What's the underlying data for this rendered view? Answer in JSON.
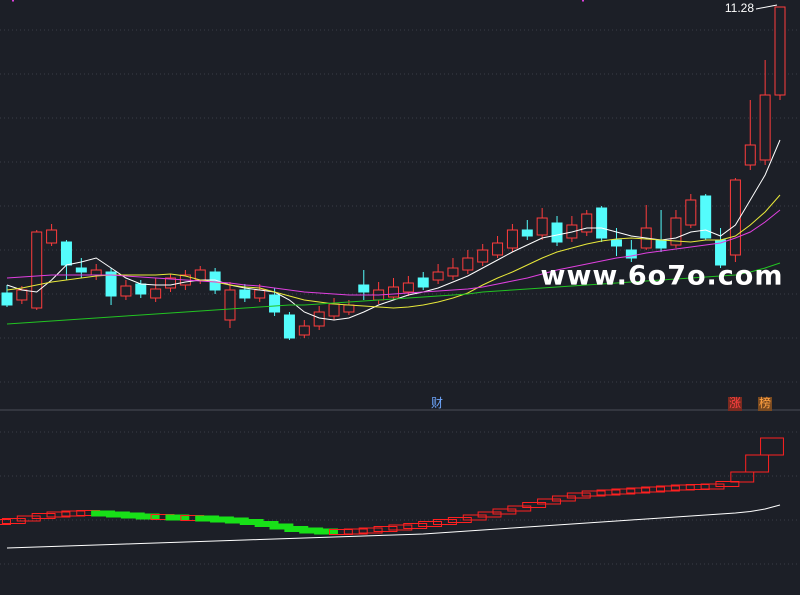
{
  "chart_data": {
    "type": "candlestick",
    "ylim": [
      3.52,
      11.42
    ],
    "up_color": "#ff3c3c",
    "down_color": "#54fcfc",
    "open": [
      5.56,
      5.42,
      5.26,
      6.56,
      6.58,
      6.06,
      5.92,
      5.98,
      5.5,
      5.74,
      5.46,
      5.66,
      5.72,
      5.82,
      5.98,
      5.02,
      5.62,
      5.46,
      5.52,
      5.12,
      4.72,
      4.9,
      5.1,
      5.18,
      5.72,
      5.42,
      5.48,
      5.58,
      5.86,
      5.82,
      5.9,
      6.02,
      6.18,
      6.32,
      6.46,
      6.82,
      6.72,
      6.96,
      6.66,
      6.78,
      7.26,
      6.62,
      6.42,
      6.46,
      6.62,
      6.52,
      6.92,
      7.5,
      6.62,
      6.32,
      8.12,
      8.22,
      9.52
    ],
    "close": [
      5.32,
      5.62,
      6.78,
      6.82,
      6.12,
      5.98,
      6.02,
      5.5,
      5.7,
      5.54,
      5.64,
      5.86,
      5.92,
      6.02,
      5.62,
      5.62,
      5.46,
      5.62,
      5.18,
      4.66,
      4.9,
      5.18,
      5.34,
      5.32,
      5.58,
      5.62,
      5.68,
      5.76,
      5.68,
      5.98,
      6.06,
      6.26,
      6.42,
      6.56,
      6.82,
      6.7,
      7.06,
      6.58,
      6.92,
      7.14,
      6.66,
      6.5,
      6.26,
      6.86,
      6.46,
      7.06,
      7.42,
      6.66,
      6.12,
      7.82,
      8.52,
      9.52,
      11.28
    ],
    "high": [
      5.72,
      5.7,
      6.82,
      6.94,
      6.62,
      6.26,
      6.14,
      6.06,
      5.82,
      5.82,
      5.86,
      5.94,
      6.02,
      6.1,
      6.06,
      5.78,
      5.74,
      5.74,
      5.66,
      5.18,
      5.02,
      5.3,
      5.46,
      5.42,
      6.02,
      5.78,
      5.86,
      5.9,
      5.98,
      6.14,
      6.26,
      6.42,
      6.54,
      6.7,
      6.94,
      7.02,
      7.26,
      7.1,
      7.1,
      7.22,
      7.3,
      6.86,
      6.62,
      7.32,
      7.22,
      7.22,
      7.54,
      7.54,
      6.86,
      7.86,
      9.42,
      10.22,
      11.28
    ],
    "low": [
      5.28,
      5.34,
      5.22,
      6.5,
      5.82,
      5.86,
      5.82,
      5.32,
      5.42,
      5.46,
      5.38,
      5.58,
      5.62,
      5.74,
      5.54,
      4.86,
      5.38,
      5.38,
      5.1,
      4.62,
      4.66,
      4.82,
      5.02,
      5.12,
      5.42,
      5.34,
      5.42,
      5.5,
      5.62,
      5.74,
      5.82,
      5.94,
      6.1,
      6.26,
      6.38,
      6.62,
      6.62,
      6.5,
      6.58,
      6.7,
      6.58,
      6.3,
      6.18,
      6.42,
      6.38,
      6.46,
      6.86,
      6.62,
      6.06,
      6.18,
      8.02,
      8.12,
      9.42
    ],
    "series": [
      {
        "color": "#ffffff",
        "values": [
          5.72,
          5.62,
          5.58,
          5.82,
          6.12,
          6.18,
          6.26,
          6.06,
          5.86,
          5.74,
          5.72,
          5.72,
          5.78,
          5.82,
          5.82,
          5.72,
          5.66,
          5.62,
          5.58,
          5.42,
          5.18,
          5.06,
          5.02,
          5.06,
          5.18,
          5.32,
          5.42,
          5.52,
          5.58,
          5.66,
          5.78,
          5.9,
          6.06,
          6.22,
          6.38,
          6.52,
          6.66,
          6.72,
          6.78,
          6.86,
          6.86,
          6.78,
          6.7,
          6.66,
          6.62,
          6.66,
          6.78,
          6.82,
          6.7,
          6.92,
          7.42,
          7.92,
          8.62
        ]
      },
      {
        "color": "#e8e83a",
        "values": [
          5.62,
          5.66,
          5.72,
          5.78,
          5.82,
          5.86,
          5.9,
          5.92,
          5.92,
          5.92,
          5.92,
          5.94,
          5.9,
          5.82,
          5.78,
          5.72,
          5.68,
          5.66,
          5.58,
          5.5,
          5.42,
          5.38,
          5.34,
          5.32,
          5.3,
          5.28,
          5.26,
          5.28,
          5.32,
          5.38,
          5.46,
          5.56,
          5.72,
          5.86,
          5.98,
          6.12,
          6.26,
          6.38,
          6.46,
          6.54,
          6.6,
          6.64,
          6.66,
          6.64,
          6.62,
          6.6,
          6.58,
          6.62,
          6.62,
          6.7,
          6.92,
          7.18,
          7.52
        ]
      },
      {
        "color": "#e040e0",
        "values": [
          5.86,
          5.88,
          5.9,
          5.92,
          5.92,
          5.92,
          5.92,
          5.92,
          5.9,
          5.88,
          5.86,
          5.84,
          5.82,
          5.8,
          5.78,
          5.76,
          5.72,
          5.7,
          5.66,
          5.62,
          5.58,
          5.56,
          5.54,
          5.52,
          5.52,
          5.52,
          5.54,
          5.56,
          5.58,
          5.6,
          5.62,
          5.64,
          5.68,
          5.74,
          5.8,
          5.86,
          5.94,
          6.02,
          6.08,
          6.14,
          6.2,
          6.26,
          6.3,
          6.36,
          6.4,
          6.44,
          6.48,
          6.52,
          6.56,
          6.66,
          6.78,
          6.98,
          7.22
        ]
      },
      {
        "color": "#22c422",
        "values": [
          4.94,
          4.96,
          4.98,
          5.0,
          5.02,
          5.04,
          5.06,
          5.08,
          5.1,
          5.12,
          5.14,
          5.16,
          5.18,
          5.2,
          5.22,
          5.24,
          5.26,
          5.28,
          5.3,
          5.32,
          5.32,
          5.34,
          5.36,
          5.38,
          5.4,
          5.42,
          5.44,
          5.46,
          5.48,
          5.5,
          5.52,
          5.54,
          5.58,
          5.6,
          5.62,
          5.64,
          5.66,
          5.68,
          5.7,
          5.72,
          5.74,
          5.76,
          5.78,
          5.8,
          5.82,
          5.84,
          5.86,
          5.88,
          5.9,
          5.92,
          5.98,
          6.06,
          6.16
        ]
      }
    ],
    "lower": {
      "type": "step",
      "ylim": [
        0,
        37
      ],
      "up_color": "#ff2020",
      "down_color": "#18e018",
      "values": [
        14.6,
        15.0,
        15.6,
        16.0,
        16.2,
        16.4,
        16.4,
        16.2,
        16.0,
        15.8,
        15.6,
        15.6,
        15.4,
        15.4,
        15.2,
        15.0,
        14.8,
        14.4,
        14.0,
        13.4,
        13.0,
        12.8,
        12.6,
        12.6,
        12.8,
        13.0,
        13.4,
        13.6,
        14.0,
        14.4,
        14.8,
        15.2,
        15.8,
        16.4,
        17.0,
        17.6,
        18.4,
        19.0,
        19.6,
        20.2,
        20.4,
        20.6,
        20.8,
        21.0,
        21.2,
        21.4,
        21.6,
        21.6,
        21.8,
        22.6,
        24.6,
        28.0,
        31.4
      ],
      "line": {
        "color": "#ffffff",
        "values": [
          9.4,
          9.5,
          9.6,
          9.7,
          9.8,
          9.9,
          10.0,
          10.1,
          10.2,
          10.3,
          10.4,
          10.5,
          10.6,
          10.7,
          10.8,
          10.9,
          11.0,
          11.1,
          11.2,
          11.3,
          11.4,
          11.5,
          11.6,
          11.7,
          11.8,
          11.9,
          12.0,
          12.1,
          12.2,
          12.4,
          12.6,
          12.8,
          13.0,
          13.2,
          13.4,
          13.6,
          13.8,
          14.0,
          14.2,
          14.4,
          14.6,
          14.8,
          15.0,
          15.2,
          15.4,
          15.6,
          15.8,
          16.0,
          16.2,
          16.4,
          16.7,
          17.2,
          18.0
        ]
      }
    },
    "events": [
      "财",
      "涨",
      "榜"
    ],
    "watermark": "www.6o7o.com"
  }
}
